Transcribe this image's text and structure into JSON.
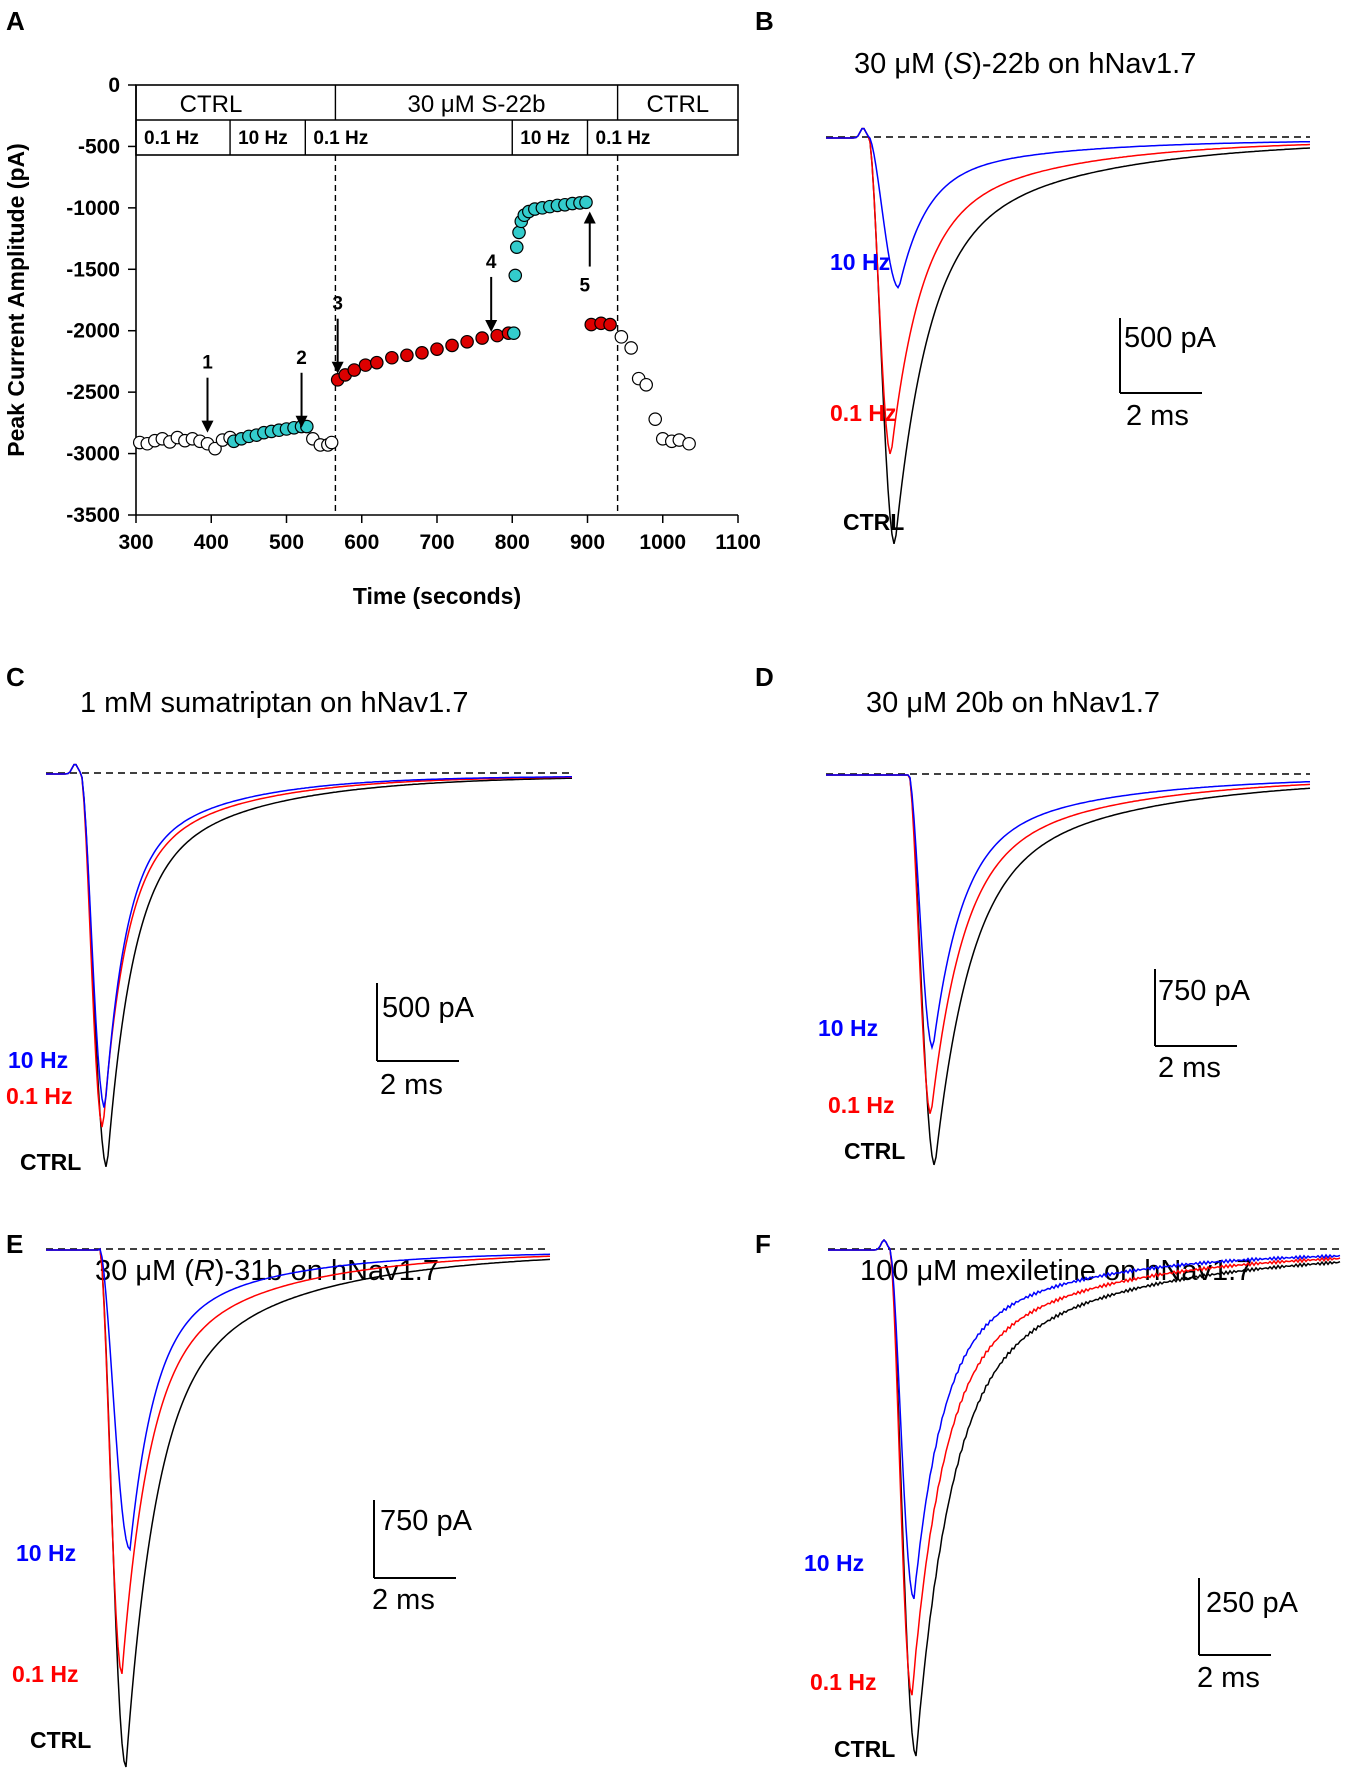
{
  "colors": {
    "ctrl": "#000000",
    "low": "#ff0000",
    "high": "#0000ff",
    "cyan": "#33cccc",
    "red_fill": "#dd0000"
  },
  "chart_data": [
    {
      "panel": "A",
      "type": "scatter",
      "xlabel": "Time (seconds)",
      "ylabel": "Peak Current Amplitude (pA)",
      "xlim": [
        300,
        1100
      ],
      "ylim": [
        -3500,
        0
      ],
      "xticks": [
        "300",
        "400",
        "500",
        "600",
        "700",
        "800",
        "900",
        "1000",
        "1100"
      ],
      "yticks": [
        "0",
        "-500",
        "-1000",
        "-1500",
        "-2000",
        "-2500",
        "-3000",
        "-3500"
      ],
      "condition_headers": [
        {
          "label": "CTRL",
          "from": 300,
          "to": 565
        },
        {
          "label": "30 μM S-22b",
          "from": 565,
          "to": 940
        },
        {
          "label": "CTRL",
          "from": 940,
          "to": 1100
        }
      ],
      "frequency_headers": [
        {
          "label": "0.1 Hz",
          "from": 300,
          "to": 425
        },
        {
          "label": "10 Hz",
          "from": 425,
          "to": 525
        },
        {
          "label": "0.1 Hz",
          "from": 525,
          "to": 800
        },
        {
          "label": "10 Hz",
          "from": 800,
          "to": 900
        },
        {
          "label": "0.1 Hz",
          "from": 900,
          "to": 1100
        }
      ],
      "drug_boundaries": [
        565,
        940
      ],
      "arrows": [
        {
          "label": "1",
          "x": 395,
          "y_tip": -2830,
          "dir": "down"
        },
        {
          "label": "2",
          "x": 520,
          "y_tip": -2790,
          "dir": "down"
        },
        {
          "label": "3",
          "x": 568,
          "y_tip": -2350,
          "dir": "down"
        },
        {
          "label": "4",
          "x": 772,
          "y_tip": -2010,
          "dir": "down"
        },
        {
          "label": "5",
          "x": 903,
          "y_tip": -1030,
          "dir": "up"
        }
      ],
      "series": [
        {
          "name": "CTRL 0.1 Hz",
          "style": "open",
          "points": [
            [
              305,
              -2910
            ],
            [
              315,
              -2920
            ],
            [
              325,
              -2895
            ],
            [
              335,
              -2880
            ],
            [
              345,
              -2905
            ],
            [
              355,
              -2870
            ],
            [
              365,
              -2895
            ],
            [
              375,
              -2880
            ],
            [
              385,
              -2900
            ],
            [
              395,
              -2920
            ],
            [
              405,
              -2960
            ],
            [
              415,
              -2890
            ],
            [
              425,
              -2870
            ],
            [
              535,
              -2880
            ],
            [
              545,
              -2930
            ],
            [
              555,
              -2930
            ],
            [
              560,
              -2910
            ]
          ]
        },
        {
          "name": "CTRL 10 Hz",
          "style": "cyan",
          "points": [
            [
              430,
              -2900
            ],
            [
              440,
              -2880
            ],
            [
              450,
              -2860
            ],
            [
              460,
              -2850
            ],
            [
              470,
              -2830
            ],
            [
              480,
              -2820
            ],
            [
              490,
              -2810
            ],
            [
              500,
              -2800
            ],
            [
              510,
              -2790
            ],
            [
              520,
              -2780
            ],
            [
              527,
              -2780
            ]
          ]
        },
        {
          "name": "S-22b 0.1 Hz",
          "style": "red",
          "points": [
            [
              568,
              -2400
            ],
            [
              578,
              -2360
            ],
            [
              590,
              -2320
            ],
            [
              605,
              -2280
            ],
            [
              620,
              -2260
            ],
            [
              640,
              -2220
            ],
            [
              660,
              -2200
            ],
            [
              680,
              -2180
            ],
            [
              700,
              -2150
            ],
            [
              720,
              -2120
            ],
            [
              740,
              -2090
            ],
            [
              760,
              -2060
            ],
            [
              780,
              -2040
            ],
            [
              795,
              -2020
            ]
          ]
        },
        {
          "name": "S-22b 10 Hz",
          "style": "cyan",
          "points": [
            [
              802,
              -2020
            ],
            [
              804,
              -1550
            ],
            [
              806,
              -1320
            ],
            [
              809,
              -1200
            ],
            [
              812,
              -1110
            ],
            [
              816,
              -1060
            ],
            [
              822,
              -1030
            ],
            [
              830,
              -1010
            ],
            [
              840,
              -1000
            ],
            [
              850,
              -990
            ],
            [
              860,
              -980
            ],
            [
              870,
              -975
            ],
            [
              880,
              -965
            ],
            [
              890,
              -960
            ],
            [
              898,
              -955
            ]
          ]
        },
        {
          "name": "S-22b 0.1 Hz recovery",
          "style": "red",
          "points": [
            [
              905,
              -1950
            ],
            [
              918,
              -1940
            ],
            [
              930,
              -1950
            ]
          ]
        },
        {
          "name": "Washout 0.1 Hz",
          "style": "open",
          "points": [
            [
              945,
              -2050
            ],
            [
              958,
              -2140
            ],
            [
              968,
              -2390
            ],
            [
              978,
              -2440
            ],
            [
              990,
              -2720
            ],
            [
              1000,
              -2880
            ],
            [
              1012,
              -2900
            ],
            [
              1022,
              -2890
            ],
            [
              1035,
              -2920
            ]
          ]
        }
      ]
    },
    {
      "panel": "B",
      "type": "line",
      "title_pre": "30 μM (",
      "title_it": "S",
      "title_post": ")-22b on hNav1.7",
      "series": [
        {
          "name": "CTRL",
          "depth": 1.0
        },
        {
          "name": "0.1 Hz",
          "depth": 0.78
        },
        {
          "name": "10 Hz",
          "depth": 0.37
        }
      ],
      "scale": {
        "current": "500 pA",
        "time": "2 ms"
      }
    },
    {
      "panel": "C",
      "type": "line",
      "title": "1 mM sumatriptan on hNav1.7",
      "series": [
        {
          "name": "CTRL",
          "depth": 1.0
        },
        {
          "name": "0.1 Hz",
          "depth": 0.9
        },
        {
          "name": "10 Hz",
          "depth": 0.85
        }
      ],
      "scale": {
        "current": "500 pA",
        "time": "2 ms"
      }
    },
    {
      "panel": "D",
      "type": "line",
      "title": "30 μM 20b on hNav1.7",
      "series": [
        {
          "name": "CTRL",
          "depth": 1.0
        },
        {
          "name": "0.1 Hz",
          "depth": 0.87
        },
        {
          "name": "10 Hz",
          "depth": 0.7
        }
      ],
      "scale": {
        "current": "750 pA",
        "time": "2 ms"
      }
    },
    {
      "panel": "E",
      "type": "line",
      "title_pre": "30 μM (",
      "title_it": "R",
      "title_post": ")-31b on hNav1.7",
      "series": [
        {
          "name": "CTRL",
          "depth": 1.0
        },
        {
          "name": "0.1 Hz",
          "depth": 0.82
        },
        {
          "name": "10 Hz",
          "depth": 0.58
        }
      ],
      "scale": {
        "current": "750 pA",
        "time": "2 ms"
      }
    },
    {
      "panel": "F",
      "type": "line",
      "title": "100 μM mexiletine on hNav1.7",
      "series": [
        {
          "name": "CTRL",
          "depth": 1.0
        },
        {
          "name": "0.1 Hz",
          "depth": 0.88
        },
        {
          "name": "10 Hz",
          "depth": 0.69
        }
      ],
      "scale": {
        "current": "250 pA",
        "time": "2 ms"
      }
    }
  ]
}
